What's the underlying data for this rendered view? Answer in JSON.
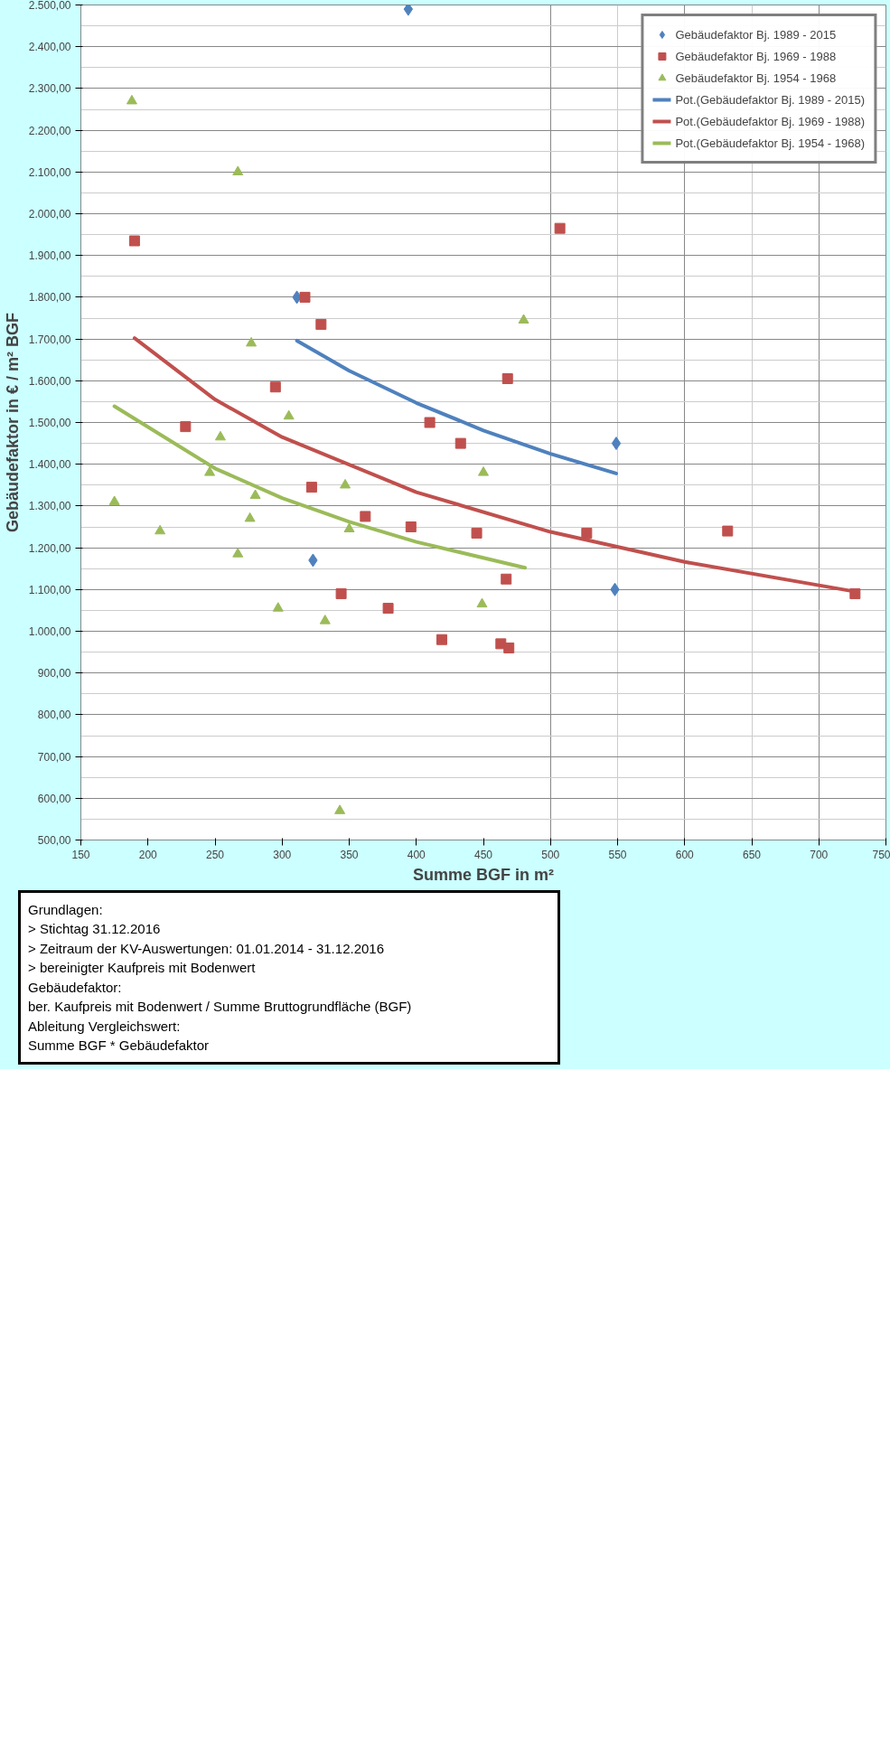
{
  "chart_data": {
    "type": "scatter",
    "xlabel": "Summe BGF in m²",
    "ylabel": "Gebäudefaktor in € / m² BGF",
    "xlim": [
      150,
      750
    ],
    "xticks": [
      150,
      200,
      250,
      300,
      350,
      400,
      450,
      500,
      550,
      600,
      650,
      700,
      750
    ],
    "ylim": [
      500,
      2500
    ],
    "yticks": [
      {
        "value": 500,
        "label": "500,00"
      },
      {
        "value": 600,
        "label": "600,00"
      },
      {
        "value": 700,
        "label": "700,00"
      },
      {
        "value": 800,
        "label": "800,00"
      },
      {
        "value": 900,
        "label": "900,00"
      },
      {
        "value": 1000,
        "label": "1.000,00"
      },
      {
        "value": 1100,
        "label": "1.100,00"
      },
      {
        "value": 1200,
        "label": "1.200,00"
      },
      {
        "value": 1300,
        "label": "1.300,00"
      },
      {
        "value": 1400,
        "label": "1.400,00"
      },
      {
        "value": 1500,
        "label": "1.500,00"
      },
      {
        "value": 1600,
        "label": "1.600,00"
      },
      {
        "value": 1700,
        "label": "1.700,00"
      },
      {
        "value": 1800,
        "label": "1.800,00"
      },
      {
        "value": 1900,
        "label": "1.900,00"
      },
      {
        "value": 2000,
        "label": "2.000,00"
      },
      {
        "value": 2100,
        "label": "2.100,00"
      },
      {
        "value": 2200,
        "label": "2.200,00"
      },
      {
        "value": 2300,
        "label": "2.300,00"
      },
      {
        "value": 2400,
        "label": "2.400,00"
      },
      {
        "value": 2500,
        "label": "2.500,00"
      }
    ],
    "grid": true,
    "legend": "top right",
    "series": [
      {
        "name": "Gebäudefaktor Bj. 1989 - 2015",
        "marker": "diamond",
        "color": "#4f81bd",
        "x": [
          311,
          323,
          394,
          548,
          549
        ],
        "values": [
          1800,
          1170,
          2490,
          1100,
          1450
        ]
      },
      {
        "name": "Gebäudefaktor Bj. 1969 - 1988",
        "marker": "square",
        "color": "#c0504d",
        "x": [
          190,
          228,
          295,
          317,
          322,
          329,
          344,
          362,
          379,
          396,
          410,
          419,
          433,
          445,
          463,
          467,
          468,
          469,
          507,
          527,
          632,
          727
        ],
        "values": [
          1935,
          1490,
          1585,
          1800,
          1345,
          1735,
          1090,
          1275,
          1055,
          1250,
          1500,
          980,
          1450,
          1235,
          970,
          1125,
          1605,
          960,
          1965,
          1235,
          1240,
          1090
        ]
      },
      {
        "name": "Gebäudefaktor Bj. 1954 - 1968",
        "marker": "triangle",
        "color": "#9bbb59",
        "x": [
          175,
          188,
          209,
          246,
          254,
          267,
          267,
          276,
          277,
          280,
          297,
          305,
          332,
          343,
          347,
          350,
          449,
          450,
          480
        ],
        "values": [
          1310,
          2270,
          1240,
          1380,
          1465,
          2100,
          1185,
          1270,
          1690,
          1325,
          1055,
          1515,
          1025,
          570,
          1350,
          1245,
          1065,
          1380,
          1745
        ]
      },
      {
        "name": "Pot.(Gebäudefaktor Bj. 1989 - 2015)",
        "type": "line",
        "color": "#4f81bd",
        "x": [
          311,
          350,
          400,
          450,
          500,
          549
        ],
        "values": [
          1696,
          1624,
          1547,
          1481,
          1425,
          1378
        ]
      },
      {
        "name": "Pot.(Gebäudefaktor Bj. 1969 - 1988)",
        "type": "line",
        "color": "#c0504d",
        "x": [
          190,
          250,
          300,
          400,
          500,
          600,
          727
        ],
        "values": [
          1702,
          1555,
          1465,
          1333,
          1238,
          1166,
          1095
        ]
      },
      {
        "name": "Pot.(Gebäudefaktor Bj. 1954 - 1968)",
        "type": "line",
        "color": "#9bbb59",
        "x": [
          175,
          250,
          300,
          350,
          400,
          481
        ],
        "values": [
          1539,
          1390,
          1319,
          1262,
          1214,
          1152
        ]
      }
    ],
    "annotations": [
      "Grundlagen:",
      "> Stichtag 31.12.2016",
      "> Zeitraum der KV-Auswertungen: 01.01.2014 - 31.12.2016",
      "> bereinigter Kaufpreis mit Bodenwert",
      "Gebäudefaktor:",
      "ber. Kaufpreis  mit Bodenwert / Summe Bruttogrundfläche (BGF)",
      "Ableitung Vergleichswert:",
      "Summe BGF * Gebäudefaktor"
    ]
  }
}
